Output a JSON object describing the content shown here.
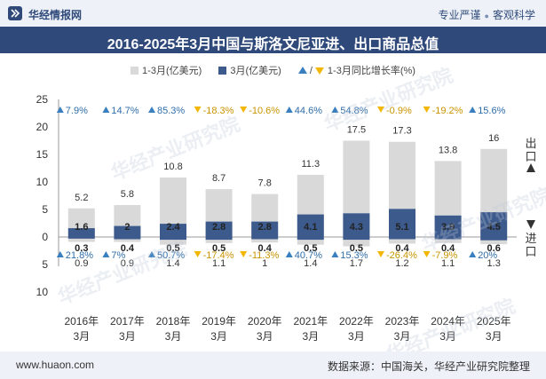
{
  "header": {
    "brand": "华经情报网",
    "tag1": "专业严谨",
    "tag2": "客观科学"
  },
  "title": "2016-2025年3月中国与斯洛文尼亚进、出口商品总值",
  "legend": {
    "cumulative": "1-3月(亿美元)",
    "march": "3月(亿美元)",
    "growth": "1-3月同比增长率(%)"
  },
  "colors": {
    "cumulative_bar": "#d9d9d9",
    "march_bar": "#3c5a8c",
    "growth_up": "#3a7fbf",
    "growth_down": "#f2b705",
    "title_bg": "#2f4a7a"
  },
  "side_labels": {
    "export": "出口",
    "import": "进口"
  },
  "chart_data": {
    "type": "bar",
    "categories": [
      "2016年\n3月",
      "2017年\n3月",
      "2018年\n3月",
      "2019年\n3月",
      "2020年\n3月",
      "2021年\n3月",
      "2022年\n3月",
      "2023年\n3月",
      "2024年\n3月",
      "2025年\n3月"
    ],
    "y_ticks_export": [
      25,
      20,
      15,
      10,
      5,
      0
    ],
    "y_ticks_import": [
      5,
      10
    ],
    "export": {
      "cumulative_1_3": [
        5.2,
        5.8,
        10.8,
        8.7,
        7.8,
        11.3,
        17.5,
        17.3,
        13.8,
        16
      ],
      "march": [
        1.6,
        2,
        2.4,
        2.8,
        2.8,
        4.1,
        4.3,
        5.1,
        3.9,
        4.5
      ],
      "growth_labels": [
        "7.9%",
        "14.7%",
        "85.3%",
        "-18.3%",
        "-10.6%",
        "44.6%",
        "54.8%",
        "-0.9%",
        "-19.2%",
        "15.6%"
      ]
    },
    "import": {
      "march": [
        0.3,
        0.4,
        0.5,
        0.5,
        0.4,
        0.5,
        0.5,
        0.4,
        0.4,
        0.6
      ],
      "cumulative_1_3": [
        0.9,
        0.9,
        1.4,
        1.1,
        1,
        1.4,
        1.7,
        1.2,
        1.1,
        1.3
      ],
      "growth_labels": [
        "21.8%",
        "7%",
        "50.7%",
        "-17.4%",
        "-11.3%",
        "40.7%",
        "15.3%",
        "-26.4%",
        "-7.9%",
        "20%"
      ]
    }
  },
  "footer": {
    "url": "www.huaon.com",
    "source": "数据来源：中国海关，华经产业研究院整理"
  },
  "watermark": "华经产业研究院"
}
